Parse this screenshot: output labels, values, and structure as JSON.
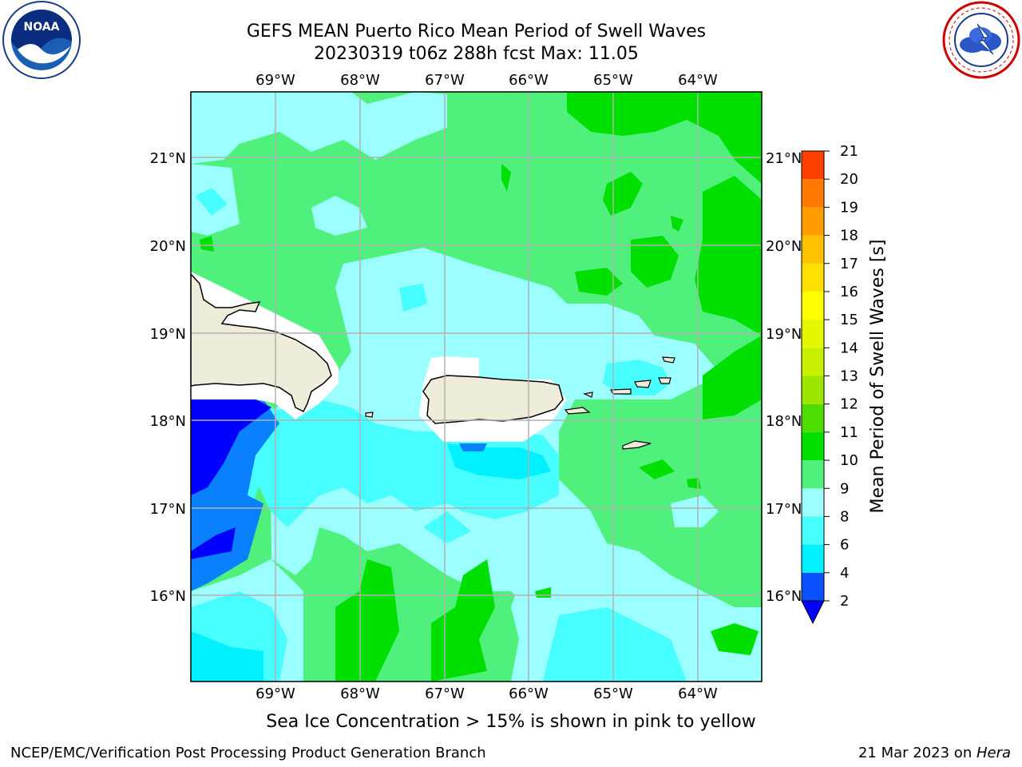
{
  "title": {
    "line1": "GEFS MEAN Puerto Rico Mean Period of Swell Waves",
    "line2": "20230319 t06z 288h fcst   Max: 11.05"
  },
  "caption": "Sea Ice Concentration > 15% is shown in pink to yellow",
  "footer": {
    "left": "NCEP/EMC/Verification Post Processing Product Generation Branch",
    "right_date": "21 Mar 2023 on ",
    "right_host": "Hera"
  },
  "logos": {
    "left": "noaa-logo",
    "right": "nws-logo"
  },
  "map": {
    "lon_labels": [
      "69°W",
      "68°W",
      "67°W",
      "66°W",
      "65°W",
      "64°W"
    ],
    "lat_labels": [
      "21°N",
      "20°N",
      "19°N",
      "18°N",
      "17°N",
      "16°N"
    ],
    "land_color": "#efedda",
    "coast_color": "#000000",
    "grid_color": "#b0b0b0"
  },
  "colorbar": {
    "label": "Mean Period of Swell Waves [s]",
    "ticks": [
      "2",
      "4",
      "6",
      "8",
      "9",
      "10",
      "11",
      "12",
      "13",
      "14",
      "15",
      "16",
      "17",
      "18",
      "19",
      "20",
      "21"
    ],
    "colors": [
      "#0a50ff",
      "#00f0ff",
      "#48ffff",
      "#9cffff",
      "#4ff07b",
      "#00e000",
      "#4fdc00",
      "#9ee600",
      "#c8f000",
      "#e6f800",
      "#ffff00",
      "#ffe000",
      "#ffc000",
      "#ff9c00",
      "#ff7800",
      "#ff4000",
      "#ff0000"
    ],
    "under_color": "#0000ff"
  }
}
